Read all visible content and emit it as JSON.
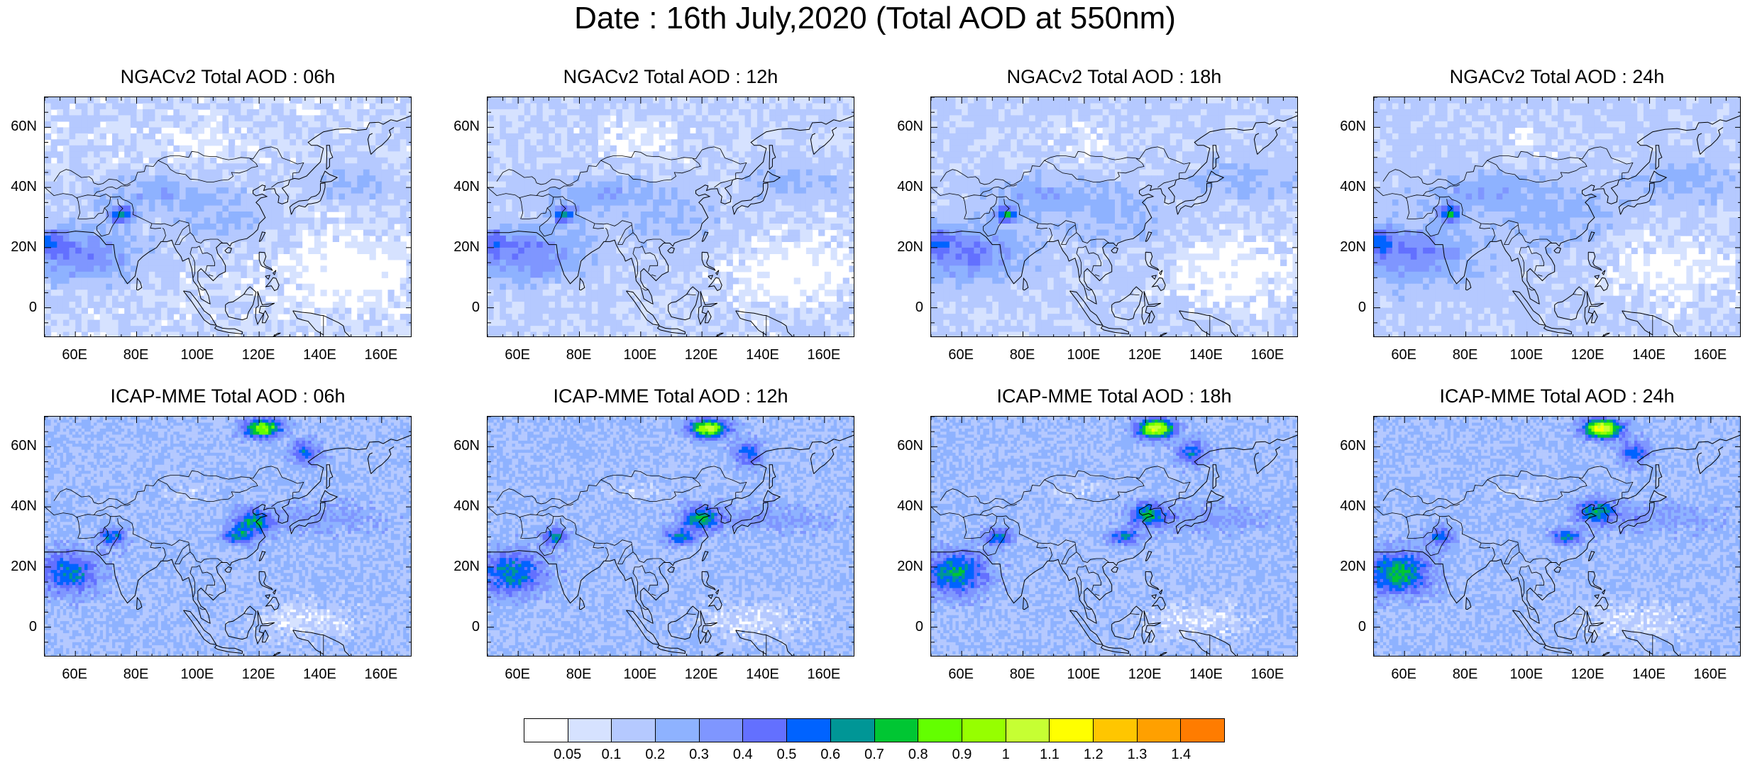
{
  "title": "Date : 16th July,2020 (Total AOD at 550nm)",
  "panels": [
    {
      "title": "NGACv2 Total AOD : 06h",
      "model": "ngac"
    },
    {
      "title": "NGACv2 Total AOD : 12h",
      "model": "ngac"
    },
    {
      "title": "NGACv2 Total AOD : 18h",
      "model": "ngac"
    },
    {
      "title": "NGACv2 Total AOD : 24h",
      "model": "ngac"
    },
    {
      "title": "ICAP-MME Total AOD : 06h",
      "model": "icap"
    },
    {
      "title": "ICAP-MME Total AOD : 12h",
      "model": "icap"
    },
    {
      "title": "ICAP-MME Total AOD : 18h",
      "model": "icap"
    },
    {
      "title": "ICAP-MME Total AOD : 24h",
      "model": "icap"
    }
  ],
  "y_ticks": [
    "60N",
    "40N",
    "20N",
    "0"
  ],
  "x_ticks": [
    "60E",
    "80E",
    "100E",
    "120E",
    "140E",
    "160E"
  ],
  "colorbar": {
    "labels": [
      "0.05",
      "0.1",
      "0.2",
      "0.3",
      "0.4",
      "0.5",
      "0.6",
      "0.7",
      "0.8",
      "0.9",
      "1",
      "1.1",
      "1.2",
      "1.3",
      "1.4"
    ],
    "colors": [
      "#ffffff",
      "#d6e2ff",
      "#b5c9ff",
      "#8eb2ff",
      "#7f96ff",
      "#6370ff",
      "#0063ff",
      "#009696",
      "#00c633",
      "#63ff00",
      "#96ff00",
      "#c6ff33",
      "#ffff00",
      "#ffc600",
      "#ffa000",
      "#ff7c00",
      "#ff1900"
    ]
  }
}
